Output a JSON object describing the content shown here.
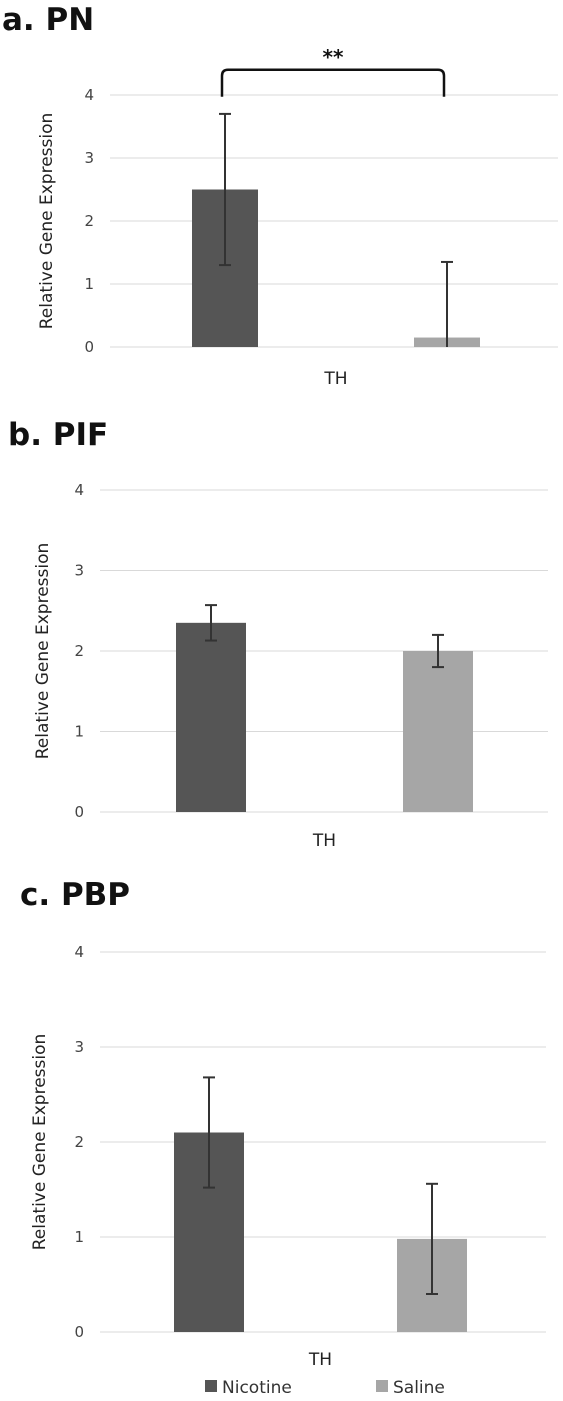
{
  "colors": {
    "nicotine": "#555555",
    "saline": "#a6a6a6",
    "grid": "#d9d9d9"
  },
  "legend": [
    {
      "name": "Nicotine",
      "color": "#555555"
    },
    {
      "name": "Saline",
      "color": "#a6a6a6"
    }
  ],
  "chart_data": [
    {
      "type": "bar",
      "title": "a. PN",
      "categories": [
        "TH"
      ],
      "ylabel": "Relative Gene Expression",
      "xlabel": "",
      "ylim": [
        0,
        4
      ],
      "yticks": [
        "0",
        "1",
        "2",
        "3",
        "4"
      ],
      "series": [
        {
          "name": "Nicotine",
          "values": [
            2.5
          ],
          "error": [
            1.2
          ]
        },
        {
          "name": "Saline",
          "values": [
            0.15
          ],
          "error": [
            1.2
          ]
        }
      ],
      "annotations": [
        {
          "text": "**",
          "type": "significance-bracket",
          "between": [
            "Nicotine",
            "Saline"
          ],
          "y": 4.4
        }
      ]
    },
    {
      "type": "bar",
      "title": "b. PIF",
      "categories": [
        "TH"
      ],
      "ylabel": "Relative Gene Expression",
      "xlabel": "",
      "ylim": [
        0,
        4
      ],
      "yticks": [
        "0",
        "1",
        "2",
        "3",
        "4"
      ],
      "series": [
        {
          "name": "Nicotine",
          "values": [
            2.35
          ],
          "error": [
            0.22
          ]
        },
        {
          "name": "Saline",
          "values": [
            2.0
          ],
          "error": [
            0.2
          ]
        }
      ],
      "annotations": []
    },
    {
      "type": "bar",
      "title": "c. PBP",
      "categories": [
        "TH"
      ],
      "ylabel": "Relative Gene Expression",
      "xlabel": "",
      "ylim": [
        0,
        4
      ],
      "yticks": [
        "0",
        "1",
        "2",
        "3",
        "4"
      ],
      "series": [
        {
          "name": "Nicotine",
          "values": [
            2.1
          ],
          "error": [
            0.58
          ]
        },
        {
          "name": "Saline",
          "values": [
            0.98
          ],
          "error": [
            0.58
          ]
        }
      ],
      "annotations": []
    }
  ]
}
